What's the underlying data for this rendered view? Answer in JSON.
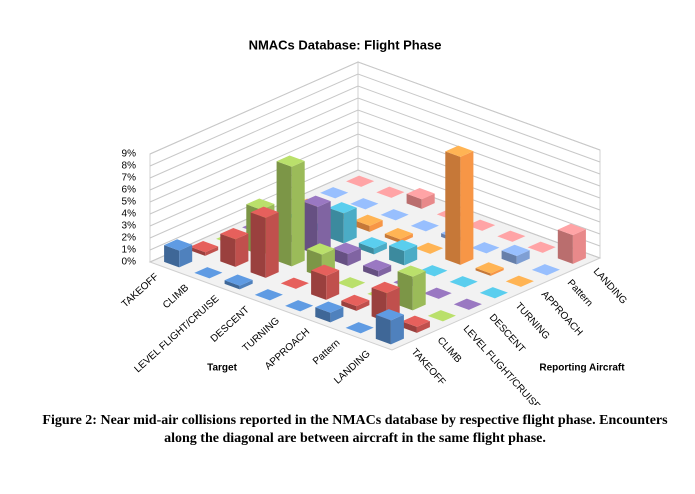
{
  "chart_data": {
    "type": "bar3d",
    "title": "NMACs Database: Flight Phase",
    "x_label": "Target",
    "depth_label": "Reporting Aircraft",
    "categories": [
      "TAKEOFF",
      "CLIMB",
      "LEVEL FLIGHT/CRUISE",
      "DESCENT",
      "TURNING",
      "APPROACH",
      "Pattern",
      "LANDING"
    ],
    "series": [
      {
        "name": "TAKEOFF",
        "color": "#4f81bd",
        "values": [
          1.4,
          0,
          0.3,
          0,
          0,
          0.8,
          0,
          2.0
        ]
      },
      {
        "name": "CLIMB",
        "color": "#c0504d",
        "values": [
          0.3,
          2.3,
          5.0,
          0,
          2.0,
          0.4,
          2.4,
          0.5
        ]
      },
      {
        "name": "LEVEL FLIGHT/CRUISE",
        "color": "#9bbb59",
        "values": [
          0,
          3.8,
          8.3,
          1.9,
          0,
          0,
          2.8,
          0
        ]
      },
      {
        "name": "DESCENT",
        "color": "#8064a2",
        "values": [
          0,
          0,
          4.0,
          1.0,
          0.5,
          0,
          0,
          0
        ]
      },
      {
        "name": "TURNING",
        "color": "#4bacc6",
        "values": [
          0,
          0,
          2.5,
          0.5,
          1.2,
          0,
          0,
          0
        ]
      },
      {
        "name": "APPROACH",
        "color": "#f79646",
        "values": [
          0,
          0,
          0.5,
          0.3,
          0,
          9.0,
          0.2,
          0
        ]
      },
      {
        "name": "Pattern",
        "color": "#7f9fd4",
        "values": [
          0,
          0,
          0,
          0,
          0.3,
          0,
          0.7,
          0
        ]
      },
      {
        "name": "LANDING",
        "color": "#e8898a",
        "values": [
          0,
          0,
          0.8,
          0,
          0,
          0,
          0,
          2.4
        ]
      }
    ],
    "zlim": [
      0,
      9
    ],
    "zticks": [
      {
        "value": 0,
        "label": "0%"
      },
      {
        "value": 1,
        "label": "1%"
      },
      {
        "value": 2,
        "label": "2%"
      },
      {
        "value": 3,
        "label": "3%"
      },
      {
        "value": 4,
        "label": "4%"
      },
      {
        "value": 5,
        "label": "5%"
      },
      {
        "value": 6,
        "label": "6%"
      },
      {
        "value": 7,
        "label": "7%"
      },
      {
        "value": 8,
        "label": "8%"
      },
      {
        "value": 9,
        "label": "9%"
      }
    ],
    "grid": true
  },
  "caption": "Figure 2: Near mid-air collisions reported in the NMACs database by respective flight phase. Encounters along the diagonal are between aircraft in the same flight phase."
}
